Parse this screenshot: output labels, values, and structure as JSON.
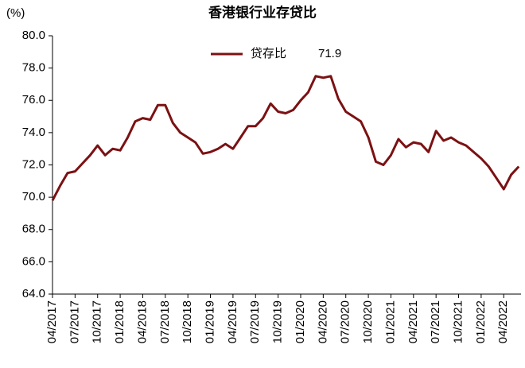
{
  "chart_data": {
    "type": "line",
    "title": "香港银行业存贷比",
    "ylabel": "(%)",
    "categories": [
      "04/2017",
      null,
      null,
      "07/2017",
      null,
      null,
      "10/2017",
      null,
      null,
      "01/2018",
      null,
      null,
      "04/2018",
      null,
      null,
      "07/2018",
      null,
      null,
      "10/2018",
      null,
      null,
      "01/2019",
      null,
      null,
      "04/2019",
      null,
      null,
      "07/2019",
      null,
      null,
      "10/2019",
      null,
      null,
      "01/2020",
      null,
      null,
      "04/2020",
      null,
      null,
      "07/2020",
      null,
      null,
      "10/2020",
      null,
      null,
      "01/2021",
      null,
      null,
      "04/2021",
      null,
      null,
      "07/2021",
      null,
      null,
      "10/2021",
      null,
      null,
      "01/2022",
      null,
      null,
      "04/2022",
      null,
      null
    ],
    "series": [
      {
        "name": "贷存比",
        "color": "#7b1113",
        "legend_value": 71.9,
        "values": [
          69.8,
          70.7,
          71.5,
          71.6,
          72.1,
          72.6,
          73.2,
          72.6,
          73.0,
          72.9,
          73.7,
          74.7,
          74.9,
          74.8,
          75.7,
          75.7,
          74.6,
          74.0,
          73.7,
          73.4,
          72.7,
          72.8,
          73.0,
          73.3,
          73.0,
          73.7,
          74.4,
          74.4,
          74.9,
          75.8,
          75.3,
          75.2,
          75.4,
          76.0,
          76.5,
          77.5,
          77.4,
          77.5,
          76.1,
          75.3,
          75.0,
          74.7,
          73.7,
          72.2,
          72.0,
          72.6,
          73.6,
          73.1,
          73.4,
          73.3,
          72.8,
          74.1,
          73.5,
          73.7,
          73.4,
          73.2,
          72.8,
          72.4,
          71.9,
          71.2,
          70.5,
          71.4,
          71.9
        ]
      }
    ],
    "ylim": [
      64,
      80
    ],
    "yticks": [
      {
        "value": 64,
        "label": "64.0"
      },
      {
        "value": 66,
        "label": "66.0"
      },
      {
        "value": 68,
        "label": "68.0"
      },
      {
        "value": 70,
        "label": "70.0"
      },
      {
        "value": 72,
        "label": "72.0"
      },
      {
        "value": 74,
        "label": "74.0"
      },
      {
        "value": 76,
        "label": "76.0"
      },
      {
        "value": 78,
        "label": "78.0"
      },
      {
        "value": 80,
        "label": "80.0"
      }
    ],
    "grid": false
  }
}
